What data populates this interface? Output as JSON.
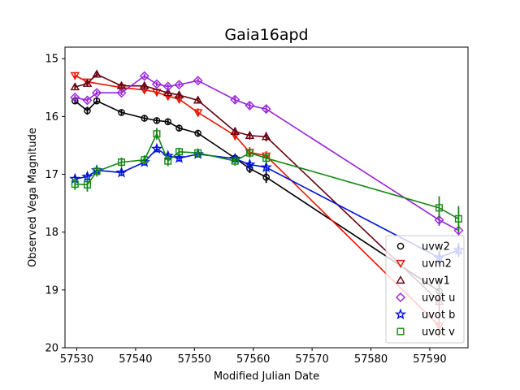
{
  "chart_data": {
    "type": "line",
    "title": "Gaia16apd",
    "xlabel": "Modified Julian Date",
    "ylabel": "Observed Vega Magnitude",
    "xlim": [
      57528,
      57596.5
    ],
    "ylim": [
      20,
      14.8
    ],
    "y_inverted": true,
    "xticks": [
      57530,
      57540,
      57550,
      57560,
      57570,
      57580,
      57590
    ],
    "yticks": [
      15,
      16,
      17,
      18,
      19,
      20
    ],
    "grid": false,
    "legend_position": "lower-right",
    "series": [
      {
        "name": "uvw2",
        "color": "#000000",
        "marker": "circle",
        "x": [
          57529.7,
          57531.8,
          57533.4,
          57537.6,
          57541.5,
          57543.6,
          57545.5,
          57547.4,
          57550.6,
          57556.9,
          57559.4,
          57562.2,
          57591.6
        ],
        "y": [
          15.73,
          15.9,
          15.73,
          15.93,
          16.03,
          16.07,
          16.09,
          16.2,
          16.29,
          16.72,
          16.9,
          17.05,
          19.02
        ],
        "yerr": [
          0.06,
          0.07,
          0.05,
          0.05,
          0.05,
          0.05,
          0.05,
          0.06,
          0.06,
          0.07,
          0.08,
          0.1,
          0.2
        ]
      },
      {
        "name": "uvm2",
        "color": "#ee1100",
        "marker": "triangle-down",
        "x": [
          57529.7,
          57531.8,
          57537.6,
          57541.5,
          57543.6,
          57545.5,
          57547.4,
          57550.6,
          57556.9,
          57559.4,
          57562.2,
          57591.6
        ],
        "y": [
          15.29,
          15.4,
          15.5,
          15.54,
          15.58,
          15.65,
          15.7,
          15.93,
          16.33,
          16.62,
          16.68,
          19.62
        ],
        "yerr": [
          0.05,
          0.05,
          0.05,
          0.05,
          0.05,
          0.05,
          0.05,
          0.07,
          0.08,
          0.09,
          0.08,
          0.2
        ]
      },
      {
        "name": "uvw1",
        "color": "#660011",
        "marker": "triangle-up",
        "x": [
          57529.7,
          57531.8,
          57533.4,
          57537.6,
          57541.5,
          57545.5,
          57547.4,
          57550.6,
          57556.9,
          57559.4,
          57562.2,
          57591.6
        ],
        "y": [
          15.49,
          15.43,
          15.27,
          15.47,
          15.47,
          15.59,
          15.63,
          15.72,
          16.26,
          16.33,
          16.35,
          19.2
        ],
        "yerr": [
          0.05,
          0.05,
          0.05,
          0.05,
          0.05,
          0.05,
          0.05,
          0.05,
          0.07,
          0.07,
          0.08,
          0.2
        ]
      },
      {
        "name": "uvot u",
        "color": "#9922dd",
        "marker": "diamond",
        "x": [
          57529.7,
          57531.8,
          57533.4,
          57537.6,
          57541.5,
          57543.6,
          57545.5,
          57547.4,
          57550.6,
          57556.9,
          57559.4,
          57562.2,
          57591.6,
          57594.9
        ],
        "y": [
          15.67,
          15.72,
          15.59,
          15.59,
          15.3,
          15.44,
          15.48,
          15.45,
          15.38,
          15.71,
          15.81,
          15.87,
          17.79,
          17.97
        ],
        "yerr": [
          0.04,
          0.04,
          0.04,
          0.04,
          0.04,
          0.04,
          0.04,
          0.04,
          0.04,
          0.05,
          0.05,
          0.06,
          0.1,
          0.1
        ]
      },
      {
        "name": "uvot b",
        "color": "#0011dd",
        "marker": "star",
        "x": [
          57529.7,
          57531.8,
          57533.4,
          57537.6,
          57541.5,
          57543.6,
          57545.5,
          57547.4,
          57550.6,
          57556.9,
          57559.4,
          57562.2,
          57591.6,
          57594.9
        ],
        "y": [
          17.08,
          17.04,
          16.93,
          16.97,
          16.79,
          16.56,
          16.68,
          16.72,
          16.65,
          16.73,
          16.83,
          16.88,
          18.44,
          18.31
        ],
        "yerr": [
          0.07,
          0.07,
          0.06,
          0.06,
          0.06,
          0.06,
          0.06,
          0.06,
          0.06,
          0.07,
          0.07,
          0.08,
          0.12,
          0.12
        ]
      },
      {
        "name": "uvot v",
        "color": "#118811",
        "marker": "square",
        "x": [
          57529.7,
          57531.8,
          57533.4,
          57537.6,
          57541.5,
          57543.6,
          57545.5,
          57547.4,
          57550.6,
          57556.9,
          57559.4,
          57562.2,
          57591.6,
          57594.9
        ],
        "y": [
          17.17,
          17.18,
          16.95,
          16.79,
          16.75,
          16.3,
          16.77,
          16.61,
          16.63,
          16.77,
          16.63,
          16.72,
          17.58,
          17.77
        ],
        "yerr": [
          0.1,
          0.12,
          0.09,
          0.08,
          0.08,
          0.1,
          0.09,
          0.07,
          0.07,
          0.08,
          0.08,
          0.09,
          0.2,
          0.22
        ]
      }
    ]
  }
}
